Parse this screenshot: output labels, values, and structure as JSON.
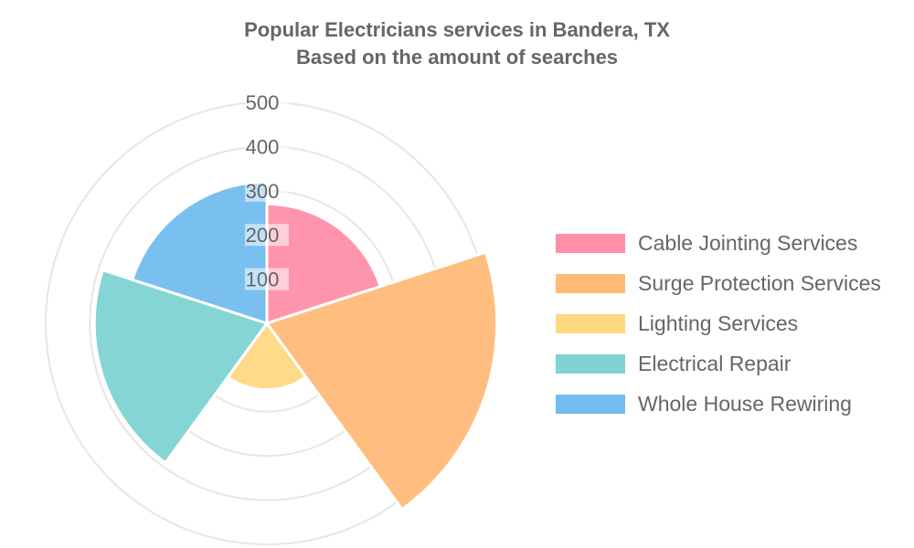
{
  "chart_data": {
    "type": "polar-area",
    "title": "Popular Electricians services in Bandera, TX",
    "subtitle": "Based on the amount of searches",
    "r_ticks": [
      100,
      200,
      300,
      400,
      500
    ],
    "r_max": 500,
    "categories": [
      "Cable Jointing Services",
      "Surge Protection Services",
      "Lighting Services",
      "Electrical Repair",
      "Whole House Rewiring"
    ],
    "values": [
      270,
      520,
      150,
      390,
      320
    ],
    "colors": [
      "#ff8fa8",
      "#ffbb78",
      "#ffd882",
      "#7fd3d3",
      "#72bcef"
    ],
    "legend_position": "right",
    "grid": true
  }
}
